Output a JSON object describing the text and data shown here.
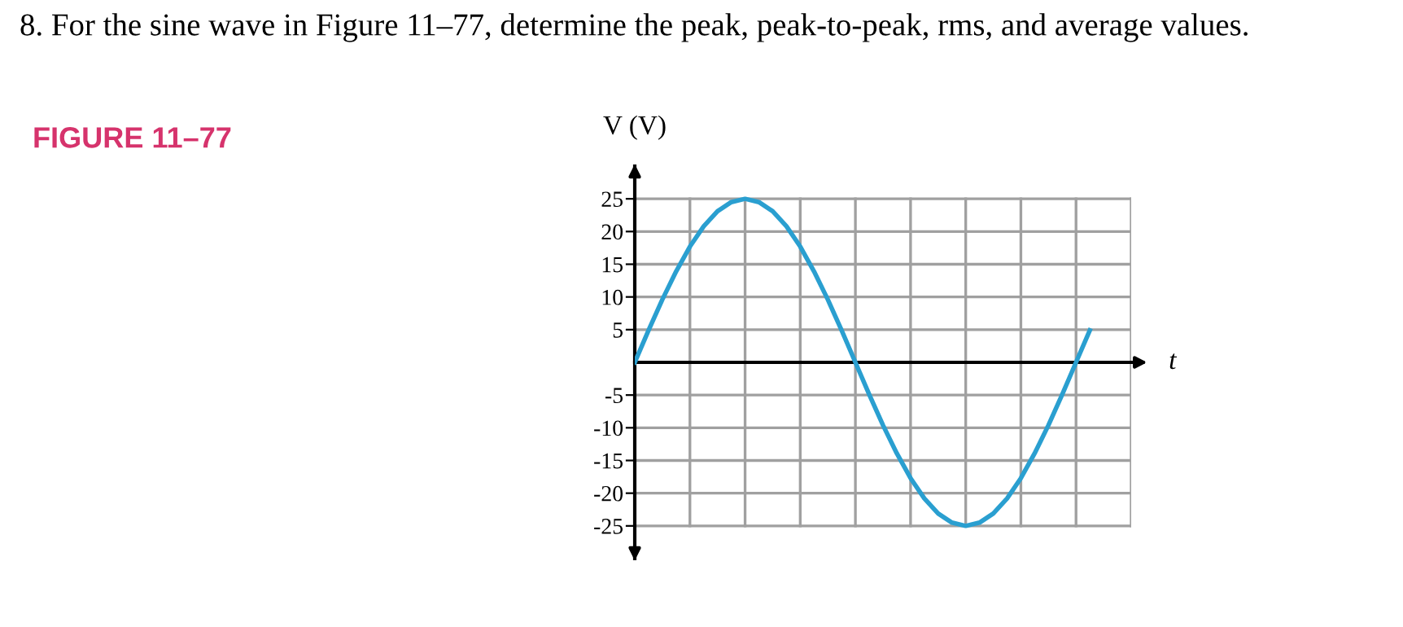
{
  "chart_data": {
    "type": "line",
    "title": "8. For the sine wave in Figure 11–77, determine the peak, peak-to-peak, rms, and average values.",
    "subtitle": "FIGURE 11–77",
    "xlabel": "t",
    "ylabel": "V (V)",
    "categories": [
      null,
      null,
      null,
      null,
      null,
      null,
      null,
      null,
      null,
      null,
      null,
      null,
      null,
      null,
      null,
      null,
      null,
      null,
      null,
      null,
      null,
      null,
      null,
      null,
      null,
      null,
      null,
      null,
      null,
      null,
      null,
      null,
      null,
      null
    ],
    "series": [
      {
        "color": "#2a9fd0",
        "values": [
          0,
          4.9,
          9.6,
          13.9,
          17.7,
          20.8,
          23.1,
          24.5,
          25,
          24.5,
          23.1,
          20.8,
          17.7,
          13.9,
          9.6,
          4.9,
          0,
          -4.9,
          -9.6,
          -13.9,
          -17.7,
          -20.8,
          -23.1,
          -24.5,
          -25,
          -24.5,
          -23.1,
          -20.8,
          -17.7,
          -13.9,
          -9.6,
          -4.9,
          0,
          4.9
        ]
      }
    ],
    "ylim": [
      -30,
      30
    ],
    "yticks": [
      25,
      20,
      15,
      10,
      5,
      -5,
      -10,
      -15,
      -20,
      -25
    ],
    "grid": true,
    "marker": "none",
    "line_style": "solid"
  }
}
